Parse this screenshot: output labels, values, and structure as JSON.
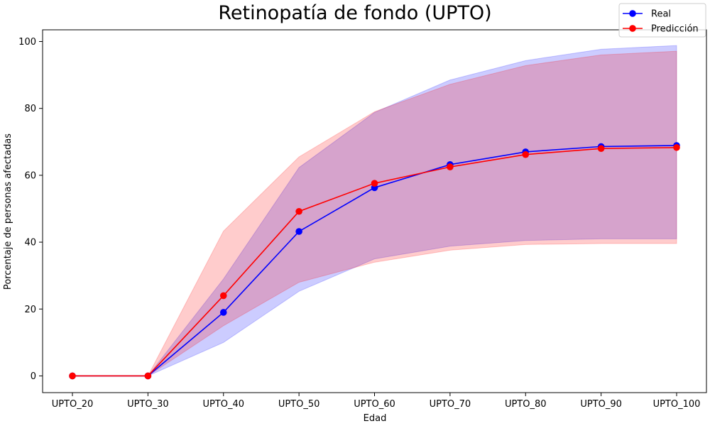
{
  "chart_data": {
    "type": "line",
    "title": "Retinopatía de fondo (UPTO)",
    "xlabel": "Edad",
    "ylabel": "Porcentaje de personas afectadas",
    "categories": [
      "UPTO_20",
      "UPTO_30",
      "UPTO_40",
      "UPTO_50",
      "UPTO_60",
      "UPTO_70",
      "UPTO_80",
      "UPTO_90",
      "UPTO_100"
    ],
    "ylim": [
      -5,
      103.5
    ],
    "yticks": [
      0,
      20,
      40,
      60,
      80,
      100
    ],
    "grid": false,
    "legend_position": "top-right",
    "series": [
      {
        "name": "Real",
        "color": "#0000ff",
        "values": [
          0,
          0,
          19,
          43.2,
          56.3,
          63.2,
          67,
          68.6,
          68.9
        ],
        "band_upper": [
          0,
          0,
          29,
          62.3,
          78.8,
          88.5,
          94.3,
          97.7,
          98.8
        ],
        "band_lower": [
          0,
          0,
          10,
          25.3,
          35,
          38.8,
          40.5,
          41,
          41
        ],
        "band_color": "#0000ff"
      },
      {
        "name": "Predicción",
        "color": "#ff0000",
        "values": [
          0,
          0,
          24,
          49.2,
          57.6,
          62.5,
          66.2,
          68,
          68.3
        ],
        "band_upper": [
          0,
          0,
          43.3,
          65.5,
          79,
          87.2,
          92.8,
          96,
          97.1
        ],
        "band_lower": [
          0,
          0,
          15,
          28,
          34,
          37.6,
          39.3,
          39.6,
          39.6
        ],
        "band_color": "#ff0000"
      }
    ]
  }
}
